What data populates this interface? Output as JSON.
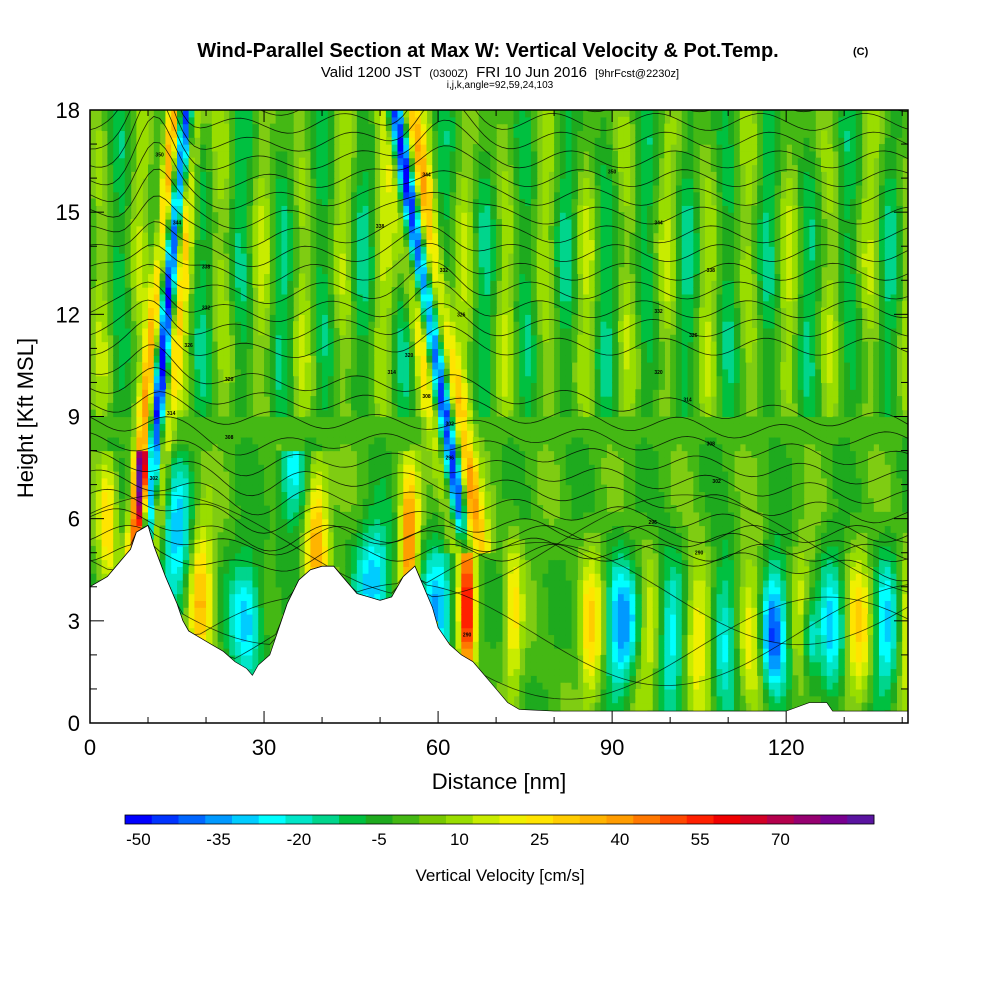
{
  "header": {
    "title": "Wind-Parallel Section at Max W: Vertical Velocity & Pot.Temp.",
    "copyright": "(C)",
    "valid_main": "Valid 1200 JST",
    "valid_utc": "(0300Z)",
    "valid_date": "FRI 10 Jun 2016",
    "forecast": "[9hrFcst@2230z]",
    "params": "i,j,k,angle=92,59,24,103"
  },
  "chart_data": {
    "type": "heatmap",
    "xlabel": "Distance [nm]",
    "ylabel": "Height [Kft MSL]",
    "xlim": [
      0,
      141
    ],
    "ylim": [
      0,
      18
    ],
    "x_ticks": [
      0,
      30,
      60,
      90,
      120
    ],
    "x_tick_labels": [
      "0",
      "30",
      "60",
      "90",
      "120"
    ],
    "y_ticks": [
      0,
      3,
      6,
      9,
      12,
      15,
      18
    ],
    "y_tick_labels": [
      "0",
      "3",
      "6",
      "9",
      "12",
      "15",
      "18"
    ],
    "terrain": [
      [
        0,
        4
      ],
      [
        3,
        4.3
      ],
      [
        5,
        4.7
      ],
      [
        7,
        5.1
      ],
      [
        8,
        5.6
      ],
      [
        10,
        5.8
      ],
      [
        11,
        5.2
      ],
      [
        13,
        4.3
      ],
      [
        15,
        3.5
      ],
      [
        16,
        3.0
      ],
      [
        17,
        2.7
      ],
      [
        19,
        2.5
      ],
      [
        21,
        2.3
      ],
      [
        23,
        2.1
      ],
      [
        25,
        1.8
      ],
      [
        27,
        1.6
      ],
      [
        28,
        1.4
      ],
      [
        29,
        1.7
      ],
      [
        31,
        2.0
      ],
      [
        32,
        2.5
      ],
      [
        34,
        3.5
      ],
      [
        36,
        4.2
      ],
      [
        38,
        4.5
      ],
      [
        40,
        4.6
      ],
      [
        42,
        4.6
      ],
      [
        44,
        4.2
      ],
      [
        46,
        3.8
      ],
      [
        48,
        3.7
      ],
      [
        50,
        3.6
      ],
      [
        52,
        3.7
      ],
      [
        54,
        4.3
      ],
      [
        56,
        4.6
      ],
      [
        57,
        4.2
      ],
      [
        59,
        3.4
      ],
      [
        60,
        2.8
      ],
      [
        62,
        2.3
      ],
      [
        64,
        2.0
      ],
      [
        66,
        1.8
      ],
      [
        68,
        1.4
      ],
      [
        70,
        1.0
      ],
      [
        72,
        0.6
      ],
      [
        74,
        0.4
      ],
      [
        80,
        0.35
      ],
      [
        90,
        0.35
      ],
      [
        100,
        0.35
      ],
      [
        110,
        0.35
      ],
      [
        120,
        0.35
      ],
      [
        124,
        0.6
      ],
      [
        127,
        0.6
      ],
      [
        128,
        0.35
      ],
      [
        141,
        0.35
      ]
    ],
    "contour_labels": [
      {
        "x": 12,
        "y": 16.7,
        "text": "350"
      },
      {
        "x": 15,
        "y": 14.7,
        "text": "344"
      },
      {
        "x": 20,
        "y": 13.4,
        "text": "338"
      },
      {
        "x": 20,
        "y": 12.2,
        "text": "332"
      },
      {
        "x": 17,
        "y": 11.1,
        "text": "326"
      },
      {
        "x": 24,
        "y": 10.1,
        "text": "320"
      },
      {
        "x": 14,
        "y": 9.1,
        "text": "314"
      },
      {
        "x": 24,
        "y": 8.4,
        "text": "308"
      },
      {
        "x": 11,
        "y": 7.2,
        "text": "302"
      },
      {
        "x": 58,
        "y": 16.1,
        "text": "344"
      },
      {
        "x": 50,
        "y": 14.6,
        "text": "338"
      },
      {
        "x": 61,
        "y": 13.3,
        "text": "332"
      },
      {
        "x": 64,
        "y": 12.0,
        "text": "326"
      },
      {
        "x": 55,
        "y": 10.8,
        "text": "320"
      },
      {
        "x": 52,
        "y": 10.3,
        "text": "314"
      },
      {
        "x": 58,
        "y": 9.6,
        "text": "308"
      },
      {
        "x": 62,
        "y": 8.8,
        "text": "302"
      },
      {
        "x": 62,
        "y": 7.8,
        "text": "296"
      },
      {
        "x": 65,
        "y": 2.6,
        "text": "290"
      },
      {
        "x": 90,
        "y": 16.2,
        "text": "350"
      },
      {
        "x": 98,
        "y": 14.7,
        "text": "344"
      },
      {
        "x": 107,
        "y": 13.3,
        "text": "338"
      },
      {
        "x": 98,
        "y": 12.1,
        "text": "332"
      },
      {
        "x": 104,
        "y": 11.4,
        "text": "326"
      },
      {
        "x": 98,
        "y": 10.3,
        "text": "320"
      },
      {
        "x": 103,
        "y": 9.5,
        "text": "314"
      },
      {
        "x": 107,
        "y": 8.2,
        "text": "308"
      },
      {
        "x": 108,
        "y": 7.1,
        "text": "302"
      },
      {
        "x": 97,
        "y": 5.9,
        "text": "296"
      },
      {
        "x": 105,
        "y": 5.0,
        "text": "290"
      }
    ]
  },
  "colorbar": {
    "label": "Vertical Velocity [cm/s]",
    "colors": [
      "#0000ff",
      "#0033ff",
      "#0066ff",
      "#0099ff",
      "#00ccff",
      "#00ffff",
      "#00e6c8",
      "#00d58c",
      "#00c040",
      "#1eaa1e",
      "#44b814",
      "#77c800",
      "#99dd00",
      "#c8ec00",
      "#f0f000",
      "#ffe400",
      "#ffcc00",
      "#ffb400",
      "#ff9c00",
      "#ff7800",
      "#ff4800",
      "#ff2000",
      "#f00000",
      "#d20026",
      "#b4004c",
      "#960070",
      "#780090",
      "#5a14a0"
    ],
    "tick_values": [
      "-50",
      "-35",
      "-20",
      "-5",
      "10",
      "25",
      "40",
      "55",
      "70"
    ]
  }
}
